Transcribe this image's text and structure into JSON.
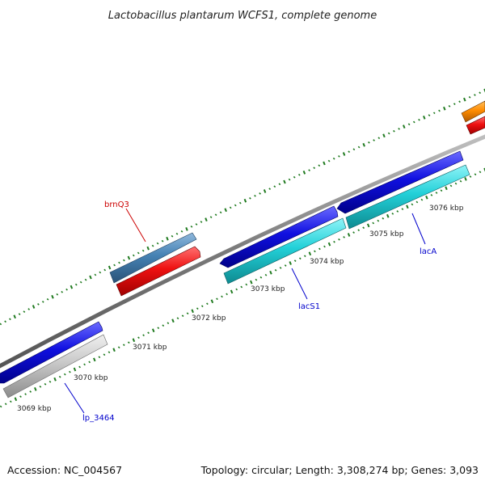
{
  "title": "Lactobacillus plantarum WCFS1, complete genome",
  "footer": {
    "accession": "Accession: NC_004567",
    "summary": "Topology: circular; Length: 3,308,274 bp; Genes: 3,093"
  },
  "scale_labels": [
    "3069 kbp",
    "3070 kbp",
    "3071 kbp",
    "3072 kbp",
    "3073 kbp",
    "3074 kbp",
    "3075 kbp",
    "3076 kbp"
  ],
  "gene_labels": {
    "brnQ3": "brnQ3",
    "lacS1": "lacS1",
    "lacA": "lacA",
    "lp_3464": "lp_3464"
  },
  "colors": {
    "backbone": "#8a8a8a",
    "tick": "#1f7a1f",
    "cds_blue": "#1010e0",
    "cds_cyan": "#22d0d8",
    "cds_red": "#ee1111",
    "cds_steelblue": "#4682b4",
    "cds_gray": "#c8c8c8",
    "cds_orange": "#ff8c00",
    "label_red": "#cc0000",
    "label_blue": "#0000cc"
  }
}
